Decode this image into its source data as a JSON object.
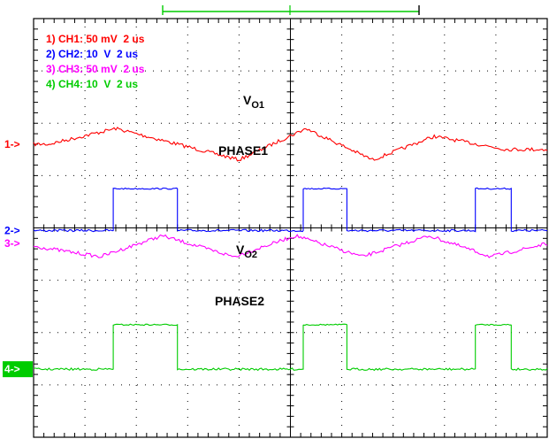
{
  "chart_data": {
    "type": "line",
    "grid": true,
    "x_divisions": 10,
    "y_divisions": 8,
    "legend": [
      {
        "text": "1) CH1: 50 mV  2 us",
        "color": "#ff0000"
      },
      {
        "text": "2) CH2: 10  V  2 us",
        "color": "#0000ff"
      },
      {
        "text": "3) CH3: 50 mV  2 us",
        "color": "#ff00ff"
      },
      {
        "text": "4) CH4: 10  V  2 us",
        "color": "#00cc00"
      }
    ],
    "markers": [
      {
        "text": "1->",
        "color": "#ff0000",
        "boxed": false
      },
      {
        "text": "2->",
        "color": "#0000ff",
        "boxed": false
      },
      {
        "text": "3->",
        "color": "#ff00ff",
        "boxed": false
      },
      {
        "text": "4->",
        "color": "#ffffff",
        "bg": "#00cc00",
        "boxed": true
      }
    ],
    "annotations": [
      {
        "main": "V",
        "sub": "O1"
      },
      {
        "main": "PHASE1",
        "sub": ""
      },
      {
        "main": "V",
        "sub": "O2"
      },
      {
        "main": "PHASE2",
        "sub": ""
      }
    ],
    "series": [
      {
        "name": "CH1",
        "color": "#ff0000",
        "kind": "triangle",
        "x": [
          0.0,
          0.3,
          1.6,
          3.0,
          4.0,
          5.3,
          6.6,
          7.8,
          9.2,
          10.0
        ],
        "y": [
          5.6,
          5.6,
          5.9,
          5.55,
          5.3,
          5.9,
          5.3,
          5.75,
          5.5,
          5.5
        ]
      },
      {
        "name": "CH2",
        "color": "#0000ff",
        "kind": "pulse",
        "low": 3.95,
        "high": 4.75,
        "pulses": [
          [
            1.55,
            2.8
          ],
          [
            5.25,
            6.1
          ],
          [
            8.6,
            9.3
          ]
        ]
      },
      {
        "name": "CH3",
        "color": "#ff00ff",
        "kind": "triangle",
        "x": [
          0.0,
          1.3,
          2.5,
          3.9,
          5.1,
          6.4,
          7.7,
          8.9,
          10.0
        ],
        "y": [
          3.65,
          3.45,
          3.85,
          3.45,
          3.85,
          3.45,
          3.85,
          3.45,
          3.7
        ]
      },
      {
        "name": "CH4",
        "color": "#00cc00",
        "kind": "pulse",
        "low": 1.3,
        "high": 2.15,
        "pulses": [
          [
            1.55,
            2.8
          ],
          [
            5.25,
            6.1
          ],
          [
            8.6,
            9.3
          ]
        ]
      }
    ],
    "trigger_bar": {
      "color": "#00cc00"
    }
  }
}
